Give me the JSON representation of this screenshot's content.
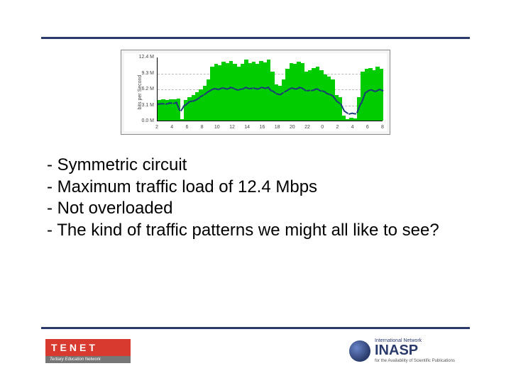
{
  "chart": {
    "type": "area-line",
    "ylabel": "bits per Second",
    "ylim": [
      0,
      12.4
    ],
    "yticks": [
      {
        "v": 0.0,
        "label": "0.0 M"
      },
      {
        "v": 3.1,
        "label": "3.1 M"
      },
      {
        "v": 6.2,
        "label": "6.2 M"
      },
      {
        "v": 9.3,
        "label": "9.3 M"
      },
      {
        "v": 12.4,
        "label": "12.4 M"
      }
    ],
    "xticks": [
      "2",
      "4",
      "6",
      "8",
      "10",
      "12",
      "14",
      "16",
      "18",
      "20",
      "22",
      "0",
      "2",
      "4",
      "6",
      "8"
    ],
    "area_color": "#00cc00",
    "line_color": "#1a3a7a",
    "background_color": "#ffffff",
    "grid_color": "#bbbbbb",
    "area_values": [
      4.0,
      4.1,
      4.0,
      4.2,
      4.1,
      4.3,
      0.3,
      4.0,
      4.5,
      5.0,
      5.5,
      6.0,
      6.8,
      8.0,
      10.5,
      11.0,
      10.8,
      11.5,
      11.2,
      11.6,
      11.0,
      10.5,
      11.0,
      11.8,
      11.2,
      11.5,
      11.0,
      11.6,
      11.3,
      11.8,
      9.5,
      7.0,
      6.8,
      8.0,
      10.0,
      11.2,
      11.0,
      11.5,
      11.2,
      9.5,
      9.8,
      10.2,
      10.5,
      9.8,
      9.0,
      8.5,
      8.0,
      5.0,
      4.5,
      1.0,
      0.3,
      0.5,
      0.4,
      4.5,
      9.5,
      10.0,
      10.2,
      9.8,
      10.5,
      10.0
    ],
    "line_values": [
      3.5,
      3.6,
      3.5,
      3.7,
      3.6,
      3.8,
      2.0,
      3.2,
      3.8,
      4.0,
      4.3,
      4.8,
      5.2,
      5.8,
      6.2,
      6.5,
      6.3,
      6.6,
      6.4,
      6.7,
      6.5,
      6.2,
      6.4,
      6.8,
      6.5,
      6.6,
      6.4,
      6.7,
      6.5,
      6.8,
      6.0,
      5.5,
      5.3,
      5.8,
      6.2,
      6.6,
      6.4,
      6.7,
      6.5,
      6.0,
      6.1,
      6.3,
      6.4,
      6.0,
      5.7,
      5.4,
      5.0,
      4.0,
      3.5,
      2.0,
      1.5,
      1.7,
      1.6,
      3.5,
      5.5,
      6.0,
      6.2,
      5.9,
      6.3,
      6.0
    ]
  },
  "bullets": {
    "l1": "- Symmetric circuit",
    "l2": "- Maximum traffic load of 12.4 Mbps",
    "l3": "- Not overloaded",
    "l4": "- The kind of traffic patterns we might all like to see?"
  },
  "logos": {
    "tenet": {
      "name": "TENET",
      "sub": "Tertiary Education Network",
      "brand_color": "#d93a2f"
    },
    "inasp": {
      "pre": "International Network",
      "name": "INASP",
      "sub": "for the Availability of Scientific Publications",
      "color": "#2a3b6b"
    }
  },
  "colors": {
    "rule": "#2a3b6b"
  }
}
